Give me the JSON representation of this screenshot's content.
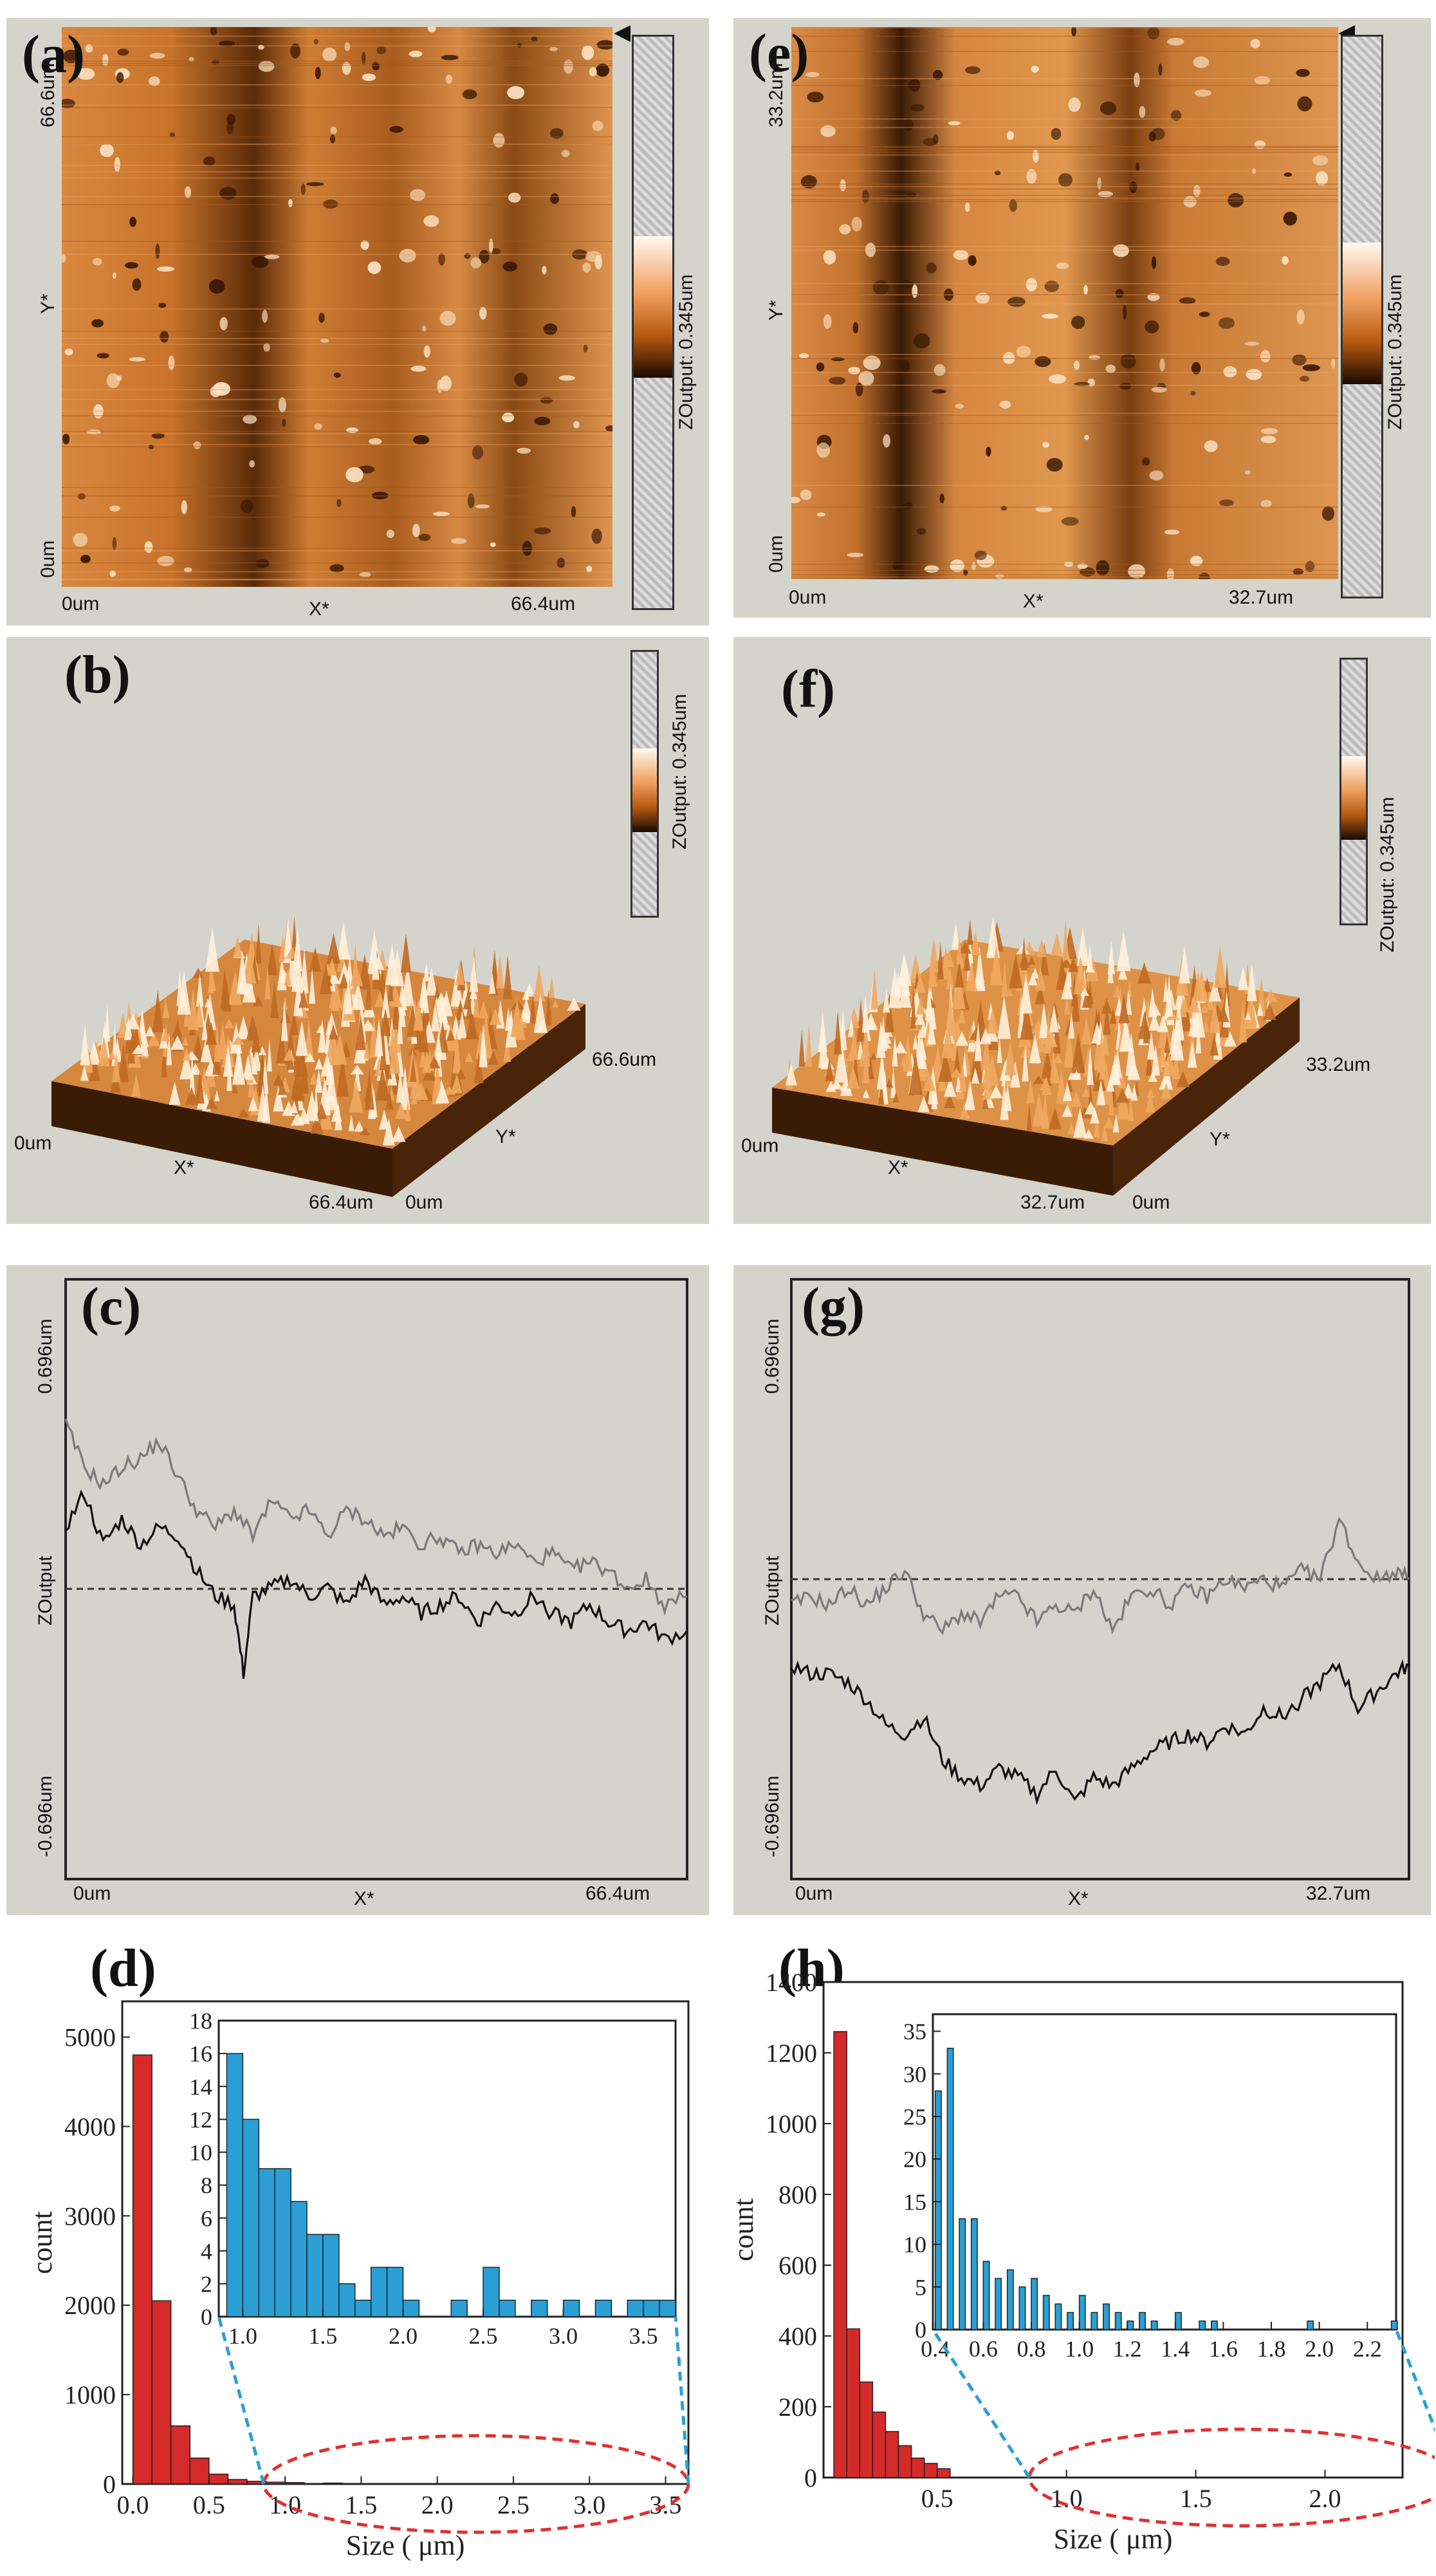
{
  "panels": {
    "a": {
      "label": "(a)",
      "y_top": "66.6um",
      "y_mid": "Y*",
      "y_bot": "0um",
      "x_left": "0um",
      "x_mid": "X*",
      "x_right": "66.4um",
      "zscale": "ZOutput: 0.345um"
    },
    "e": {
      "label": "(e)",
      "y_top": "33.2um",
      "y_mid": "Y*",
      "y_bot": "0um",
      "x_left": "0um",
      "x_mid": "X*",
      "x_right": "32.7um",
      "zscale": "ZOutput: 0.345um"
    },
    "b": {
      "label": "(b)",
      "zscale": "ZOutput: 0.345um",
      "x_left": "0um",
      "x_mid": "X*",
      "x_right": "66.4um",
      "y_start": "0um",
      "y_mid": "Y*",
      "y_end": "66.6um"
    },
    "f": {
      "label": "(f)",
      "zscale": "ZOutput: 0.345um",
      "x_left": "0um",
      "x_mid": "X*",
      "x_right": "32.7um",
      "y_start": "0um",
      "y_mid": "Y*",
      "y_end": "33.2um"
    },
    "c": {
      "label": "(c)",
      "y_top": "0.696um",
      "y_mid": "ZOutput",
      "y_bot": "-0.696um",
      "x_left": "0um",
      "x_mid": "X*",
      "x_right": "66.4um"
    },
    "g": {
      "label": "(g)",
      "y_top": "0.696um",
      "y_mid": "ZOutput",
      "y_bot": "-0.696um",
      "x_left": "0um",
      "x_mid": "X*",
      "x_right": "32.7um"
    },
    "d": {
      "label": "(d)"
    },
    "h": {
      "label": "(h)"
    }
  },
  "colors": {
    "panel_bg": "#d4d4cc",
    "main_bar": "#d42a2a",
    "inset_bar": "#2a9fd6",
    "ellipse": "#e03030",
    "connector": "#2a9fd6"
  },
  "chart_data": [
    {
      "id": "d-main",
      "type": "bar",
      "title": "",
      "xlabel": "Size ( μm)",
      "ylabel": "count",
      "x": [
        0.0,
        0.125,
        0.25,
        0.375,
        0.5,
        0.625,
        0.75,
        0.875,
        1.0,
        1.25,
        1.5,
        2.0,
        2.5,
        3.0,
        3.5
      ],
      "values": [
        4800,
        2050,
        650,
        290,
        110,
        50,
        30,
        20,
        16,
        10,
        5,
        3,
        2,
        1,
        1
      ],
      "bin_width": 0.125,
      "xlim": [
        -0.07,
        3.65
      ],
      "ylim": [
        0,
        5400
      ],
      "xticks": [
        "0.0",
        "0.5",
        "1.0",
        "1.5",
        "2.0",
        "2.5",
        "3.0",
        "3.5"
      ],
      "yticks": [
        "0",
        "1000",
        "2000",
        "3000",
        "4000",
        "5000"
      ]
    },
    {
      "id": "d-inset",
      "type": "bar",
      "x": [
        0.9,
        1.0,
        1.1,
        1.2,
        1.3,
        1.4,
        1.5,
        1.6,
        1.7,
        1.8,
        1.9,
        2.0,
        2.3,
        2.5,
        2.6,
        2.8,
        3.0,
        3.2,
        3.4,
        3.5,
        3.6
      ],
      "values": [
        16,
        12,
        9,
        9,
        7,
        5,
        5,
        2,
        1,
        3,
        3,
        1,
        1,
        3,
        1,
        1,
        1,
        1,
        1,
        1,
        1
      ],
      "bin_width": 0.1,
      "xlim": [
        0.85,
        3.7
      ],
      "ylim": [
        0,
        18
      ],
      "xticks": [
        "1.0",
        "1.5",
        "2.0",
        "2.5",
        "3.0",
        "3.5"
      ],
      "yticks": [
        "0",
        "2",
        "4",
        "6",
        "8",
        "10",
        "12",
        "14",
        "16",
        "18"
      ]
    },
    {
      "id": "h-main",
      "type": "bar",
      "title": "",
      "xlabel": "Size ( μm)",
      "ylabel": "count",
      "x": [
        0.1,
        0.15,
        0.2,
        0.25,
        0.3,
        0.35,
        0.4,
        0.45,
        0.5
      ],
      "values": [
        1260,
        420,
        270,
        185,
        130,
        90,
        55,
        40,
        25
      ],
      "bin_width": 0.05,
      "xlim": [
        0.06,
        2.3
      ],
      "ylim": [
        0,
        1400
      ],
      "xticks": [
        "0.5",
        "1.0",
        "1.5",
        "2.0"
      ],
      "yticks": [
        "0",
        "200",
        "400",
        "600",
        "800",
        "1000",
        "1200",
        "1400"
      ]
    },
    {
      "id": "h-inset",
      "type": "bar",
      "x": [
        0.4,
        0.45,
        0.5,
        0.55,
        0.6,
        0.65,
        0.7,
        0.75,
        0.8,
        0.85,
        0.9,
        0.95,
        1.0,
        1.05,
        1.1,
        1.15,
        1.2,
        1.25,
        1.3,
        1.4,
        1.5,
        1.55,
        1.95,
        2.3
      ],
      "values": [
        28,
        33,
        13,
        13,
        8,
        6,
        7,
        5,
        6,
        4,
        3,
        2,
        4,
        2,
        3,
        2,
        1,
        2,
        1,
        2,
        1,
        1,
        1,
        1
      ],
      "bin_width": 0.025,
      "xlim": [
        0.39,
        2.32
      ],
      "ylim": [
        0,
        37
      ],
      "xticks": [
        "0.4",
        "0.6",
        "0.8",
        "1.0",
        "1.2",
        "1.4",
        "1.6",
        "1.8",
        "2.0",
        "2.2"
      ],
      "yticks": [
        "0",
        "5",
        "10",
        "15",
        "20",
        "25",
        "30",
        "35"
      ]
    },
    {
      "id": "c-profile",
      "type": "line",
      "title": "",
      "xlabel": "X*",
      "ylabel": "ZOutput",
      "xlim": [
        0,
        66.4
      ],
      "ylim": [
        -0.696,
        0.696
      ],
      "series": [
        {
          "name": "upper-trace",
          "x": [
            0,
            2,
            4,
            6,
            8,
            10,
            12,
            14,
            16,
            18,
            20,
            22,
            24,
            26,
            28,
            30,
            32,
            34,
            36,
            38,
            40,
            42,
            44,
            46,
            48,
            50,
            52,
            54,
            56,
            58,
            60,
            62,
            64,
            66.4
          ],
          "values": [
            0.36,
            0.26,
            0.22,
            0.26,
            0.28,
            0.32,
            0.24,
            0.16,
            0.12,
            0.16,
            0.1,
            0.18,
            0.14,
            0.16,
            0.1,
            0.16,
            0.14,
            0.1,
            0.12,
            0.08,
            0.1,
            0.06,
            0.08,
            0.06,
            0.08,
            0.04,
            0.06,
            0.02,
            0.04,
            0.02,
            -0.02,
            0.0,
            -0.06,
            -0.04
          ]
        },
        {
          "name": "lower-trace",
          "x": [
            0,
            2,
            4,
            6,
            8,
            10,
            12,
            14,
            16,
            18,
            19,
            20,
            22,
            24,
            26,
            28,
            30,
            32,
            34,
            36,
            38,
            40,
            42,
            44,
            46,
            48,
            50,
            52,
            54,
            56,
            58,
            60,
            62,
            64,
            66.4
          ],
          "values": [
            0.12,
            0.2,
            0.08,
            0.14,
            0.08,
            0.12,
            0.1,
            0.02,
            -0.04,
            -0.06,
            -0.22,
            -0.04,
            -0.02,
            0.0,
            -0.04,
            -0.02,
            -0.06,
            0.0,
            -0.06,
            -0.04,
            -0.08,
            -0.06,
            -0.04,
            -0.1,
            -0.06,
            -0.08,
            -0.04,
            -0.08,
            -0.1,
            -0.06,
            -0.1,
            -0.12,
            -0.1,
            -0.14,
            -0.12
          ]
        }
      ]
    },
    {
      "id": "g-profile",
      "type": "line",
      "title": "",
      "xlabel": "X*",
      "ylabel": "ZOutput",
      "xlim": [
        0,
        32.7
      ],
      "ylim": [
        -0.696,
        0.696
      ],
      "series": [
        {
          "name": "upper-trace",
          "x": [
            0,
            1,
            2,
            3,
            4,
            5,
            6,
            7,
            8,
            9,
            10,
            11,
            12,
            13,
            14,
            15,
            16,
            17,
            18,
            19,
            20,
            21,
            22,
            23,
            24,
            25,
            26,
            27,
            28,
            29,
            30,
            31,
            32,
            32.7
          ],
          "values": [
            -0.06,
            -0.04,
            -0.06,
            -0.02,
            -0.06,
            -0.02,
            0.02,
            -0.08,
            -0.12,
            -0.08,
            -0.1,
            -0.04,
            -0.04,
            -0.1,
            -0.06,
            -0.08,
            -0.02,
            -0.12,
            -0.04,
            -0.02,
            -0.06,
            -0.02,
            -0.04,
            0.0,
            -0.02,
            0.0,
            -0.02,
            0.02,
            0.0,
            0.14,
            0.04,
            0.0,
            0.02,
            0.0
          ]
        },
        {
          "name": "lower-trace",
          "x": [
            0,
            1,
            2,
            3,
            4,
            5,
            6,
            7,
            8,
            9,
            10,
            11,
            12,
            13,
            14,
            15,
            16,
            17,
            18,
            19,
            20,
            21,
            22,
            23,
            24,
            25,
            26,
            27,
            28,
            29,
            30,
            31,
            32,
            32.7
          ],
          "values": [
            -0.2,
            -0.22,
            -0.22,
            -0.24,
            -0.28,
            -0.34,
            -0.36,
            -0.32,
            -0.42,
            -0.46,
            -0.48,
            -0.44,
            -0.46,
            -0.5,
            -0.44,
            -0.52,
            -0.46,
            -0.48,
            -0.44,
            -0.4,
            -0.38,
            -0.36,
            -0.38,
            -0.34,
            -0.36,
            -0.3,
            -0.32,
            -0.28,
            -0.24,
            -0.2,
            -0.3,
            -0.26,
            -0.22,
            -0.2
          ]
        }
      ]
    }
  ]
}
